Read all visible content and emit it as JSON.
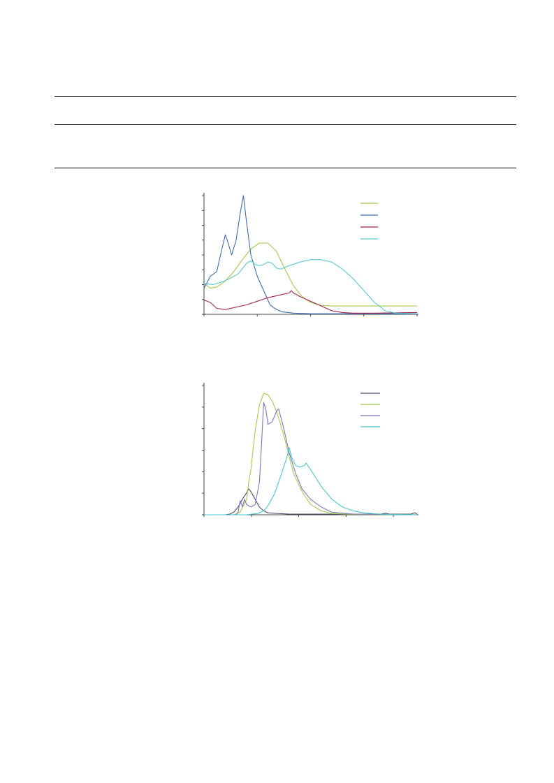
{
  "document": {
    "rules": [
      "top-rule",
      "middle-rule",
      "bottom-rule"
    ]
  },
  "chart_data": [
    {
      "type": "line",
      "title": "",
      "xlabel": "",
      "ylabel": "",
      "xlim": [
        0,
        1
      ],
      "ylim": [
        0,
        1
      ],
      "x_ticks": [
        0,
        0.25,
        0.5,
        0.75,
        1.0
      ],
      "y_tick_count": 9,
      "grid": false,
      "legend_position": "top-right",
      "series": [
        {
          "color": "#a0cc48",
          "x": [
            0,
            0.03,
            0.06,
            0.1,
            0.14,
            0.18,
            0.22,
            0.26,
            0.3,
            0.34,
            0.38,
            0.42,
            0.46,
            0.5,
            0.55,
            0.6,
            0.7,
            0.8,
            1.0
          ],
          "y": [
            0.26,
            0.22,
            0.23,
            0.28,
            0.36,
            0.46,
            0.55,
            0.6,
            0.6,
            0.53,
            0.38,
            0.24,
            0.15,
            0.1,
            0.075,
            0.07,
            0.07,
            0.07,
            0.07
          ]
        },
        {
          "color": "#3a6db0",
          "x": [
            0,
            0.03,
            0.06,
            0.08,
            0.1,
            0.11,
            0.13,
            0.15,
            0.17,
            0.185,
            0.2,
            0.22,
            0.25,
            0.28,
            0.31,
            0.34,
            0.37,
            0.42,
            0.5,
            0.6,
            0.75,
            1.0
          ],
          "y": [
            0.22,
            0.32,
            0.36,
            0.52,
            0.67,
            0.62,
            0.5,
            0.62,
            0.85,
            1.0,
            0.77,
            0.5,
            0.32,
            0.2,
            0.08,
            0.04,
            0.02,
            0.01,
            0.005,
            0.005,
            0.005,
            0.005
          ]
        },
        {
          "color": "#a3244e",
          "x": [
            0,
            0.03,
            0.06,
            0.1,
            0.15,
            0.2,
            0.25,
            0.3,
            0.35,
            0.4,
            0.41,
            0.42,
            0.45,
            0.5,
            0.55,
            0.6,
            0.65,
            0.7,
            0.8,
            1.0
          ],
          "y": [
            0.12,
            0.1,
            0.05,
            0.04,
            0.06,
            0.08,
            0.11,
            0.14,
            0.16,
            0.18,
            0.2,
            0.18,
            0.15,
            0.11,
            0.07,
            0.03,
            0.015,
            0.01,
            0.01,
            0.015
          ]
        },
        {
          "color": "#58c8d4",
          "x": [
            0,
            0.04,
            0.08,
            0.12,
            0.16,
            0.2,
            0.22,
            0.24,
            0.26,
            0.28,
            0.3,
            0.32,
            0.34,
            0.36,
            0.4,
            0.45,
            0.5,
            0.55,
            0.6,
            0.65,
            0.7,
            0.75,
            0.8,
            0.85,
            0.9,
            1.0
          ],
          "y": [
            0.26,
            0.25,
            0.27,
            0.3,
            0.34,
            0.43,
            0.45,
            0.42,
            0.41,
            0.42,
            0.44,
            0.43,
            0.39,
            0.38,
            0.41,
            0.44,
            0.46,
            0.46,
            0.44,
            0.38,
            0.3,
            0.2,
            0.1,
            0.03,
            0.01,
            0.005
          ]
        }
      ]
    },
    {
      "type": "line",
      "title": "",
      "xlabel": "",
      "ylabel": "",
      "xlim": [
        0,
        1
      ],
      "ylim": [
        0,
        1
      ],
      "x_ticks": [
        0,
        0.222,
        0.444,
        0.667,
        0.889
      ],
      "y_tick_count": 7,
      "grid": false,
      "legend_position": "top-right",
      "series": [
        {
          "color": "#4a4a6a",
          "x": [
            0,
            0.1,
            0.12,
            0.14,
            0.16,
            0.18,
            0.2,
            0.21,
            0.22,
            0.24,
            0.26,
            0.28,
            0.3,
            0.35,
            0.4,
            0.5,
            0.7,
            0.83,
            0.85,
            0.87,
            0.97,
            0.99,
            1.0
          ],
          "y": [
            0,
            0,
            0.005,
            0.02,
            0.06,
            0.12,
            0.17,
            0.2,
            0.18,
            0.12,
            0.06,
            0.03,
            0.015,
            0.01,
            0.005,
            0.005,
            0.005,
            0.005,
            0.012,
            0.005,
            0.005,
            0.015,
            0.005
          ]
        },
        {
          "color": "#a0cc48",
          "x": [
            0,
            0.14,
            0.17,
            0.2,
            0.21,
            0.22,
            0.24,
            0.26,
            0.28,
            0.3,
            0.32,
            0.34,
            0.36,
            0.38,
            0.4,
            0.42,
            0.46,
            0.5,
            0.55,
            0.6,
            0.7,
            1.0
          ],
          "y": [
            0,
            0,
            0.02,
            0.12,
            0.25,
            0.35,
            0.65,
            0.85,
            0.94,
            0.93,
            0.88,
            0.8,
            0.7,
            0.58,
            0.45,
            0.32,
            0.18,
            0.08,
            0.03,
            0.01,
            0.003,
            0
          ]
        },
        {
          "color": "#7a78b8",
          "x": [
            0,
            0.15,
            0.16,
            0.17,
            0.18,
            0.19,
            0.2,
            0.22,
            0.24,
            0.26,
            0.27,
            0.28,
            0.29,
            0.3,
            0.32,
            0.34,
            0.35,
            0.37,
            0.4,
            0.43,
            0.46,
            0.5,
            0.55,
            0.6,
            0.7,
            1.0
          ],
          "y": [
            0,
            0,
            0.02,
            0.11,
            0.06,
            0.12,
            0.08,
            0.06,
            0.08,
            0.25,
            0.55,
            0.87,
            0.82,
            0.7,
            0.72,
            0.8,
            0.82,
            0.7,
            0.48,
            0.32,
            0.2,
            0.12,
            0.06,
            0.02,
            0.005,
            0
          ]
        },
        {
          "color": "#46c4d0",
          "x": [
            0,
            0.2,
            0.25,
            0.28,
            0.3,
            0.33,
            0.36,
            0.39,
            0.4,
            0.41,
            0.43,
            0.45,
            0.47,
            0.48,
            0.5,
            0.52,
            0.55,
            0.6,
            0.65,
            0.7,
            0.75,
            0.8,
            0.85,
            0.9,
            0.95,
            1.0
          ],
          "y": [
            0,
            0,
            0.01,
            0.03,
            0.07,
            0.16,
            0.3,
            0.45,
            0.52,
            0.45,
            0.38,
            0.37,
            0.38,
            0.4,
            0.35,
            0.3,
            0.22,
            0.12,
            0.06,
            0.03,
            0.015,
            0.008,
            0.004,
            0.002,
            0.001,
            0
          ]
        }
      ]
    }
  ]
}
